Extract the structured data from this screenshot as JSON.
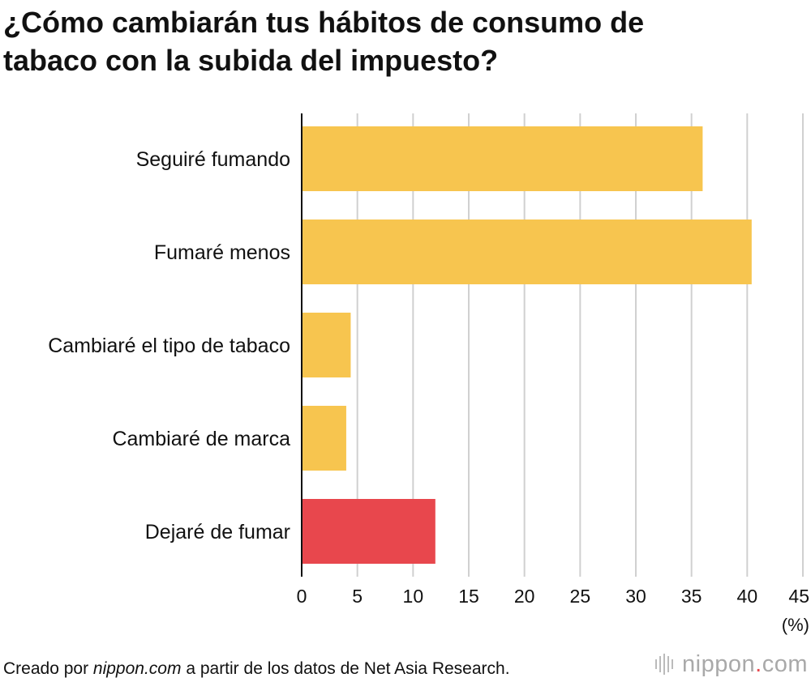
{
  "title_line1": "¿Cómo cambiarán tus hábitos de consumo de",
  "title_line2": "tabaco con la subida del impuesto?",
  "chart_data": {
    "type": "bar",
    "orientation": "horizontal",
    "title": "¿Cómo cambiarán tus hábitos de consumo de tabaco con la subida del impuesto?",
    "categories": [
      "Seguiré fumando",
      "Fumaré menos",
      "Cambiaré el tipo de tabaco",
      "Cambiaré de marca",
      "Dejaré de fumar"
    ],
    "values": [
      36.0,
      40.4,
      4.4,
      4.0,
      12.0
    ],
    "colors": [
      "#f7c54f",
      "#f7c54f",
      "#f7c54f",
      "#f7c54f",
      "#e8474d"
    ],
    "xlim": [
      0,
      45
    ],
    "xticks": [
      "0",
      "5",
      "10",
      "15",
      "20",
      "25",
      "30",
      "35",
      "40",
      "45"
    ],
    "xlabel": "(%)",
    "grid": true
  },
  "footer": {
    "prefix": "Creado por ",
    "site": "nippon.com",
    "suffix": " a partir de los datos de Net Asia Research."
  },
  "logo": {
    "name": "nippon",
    "dot": ".",
    "tld": "com"
  }
}
